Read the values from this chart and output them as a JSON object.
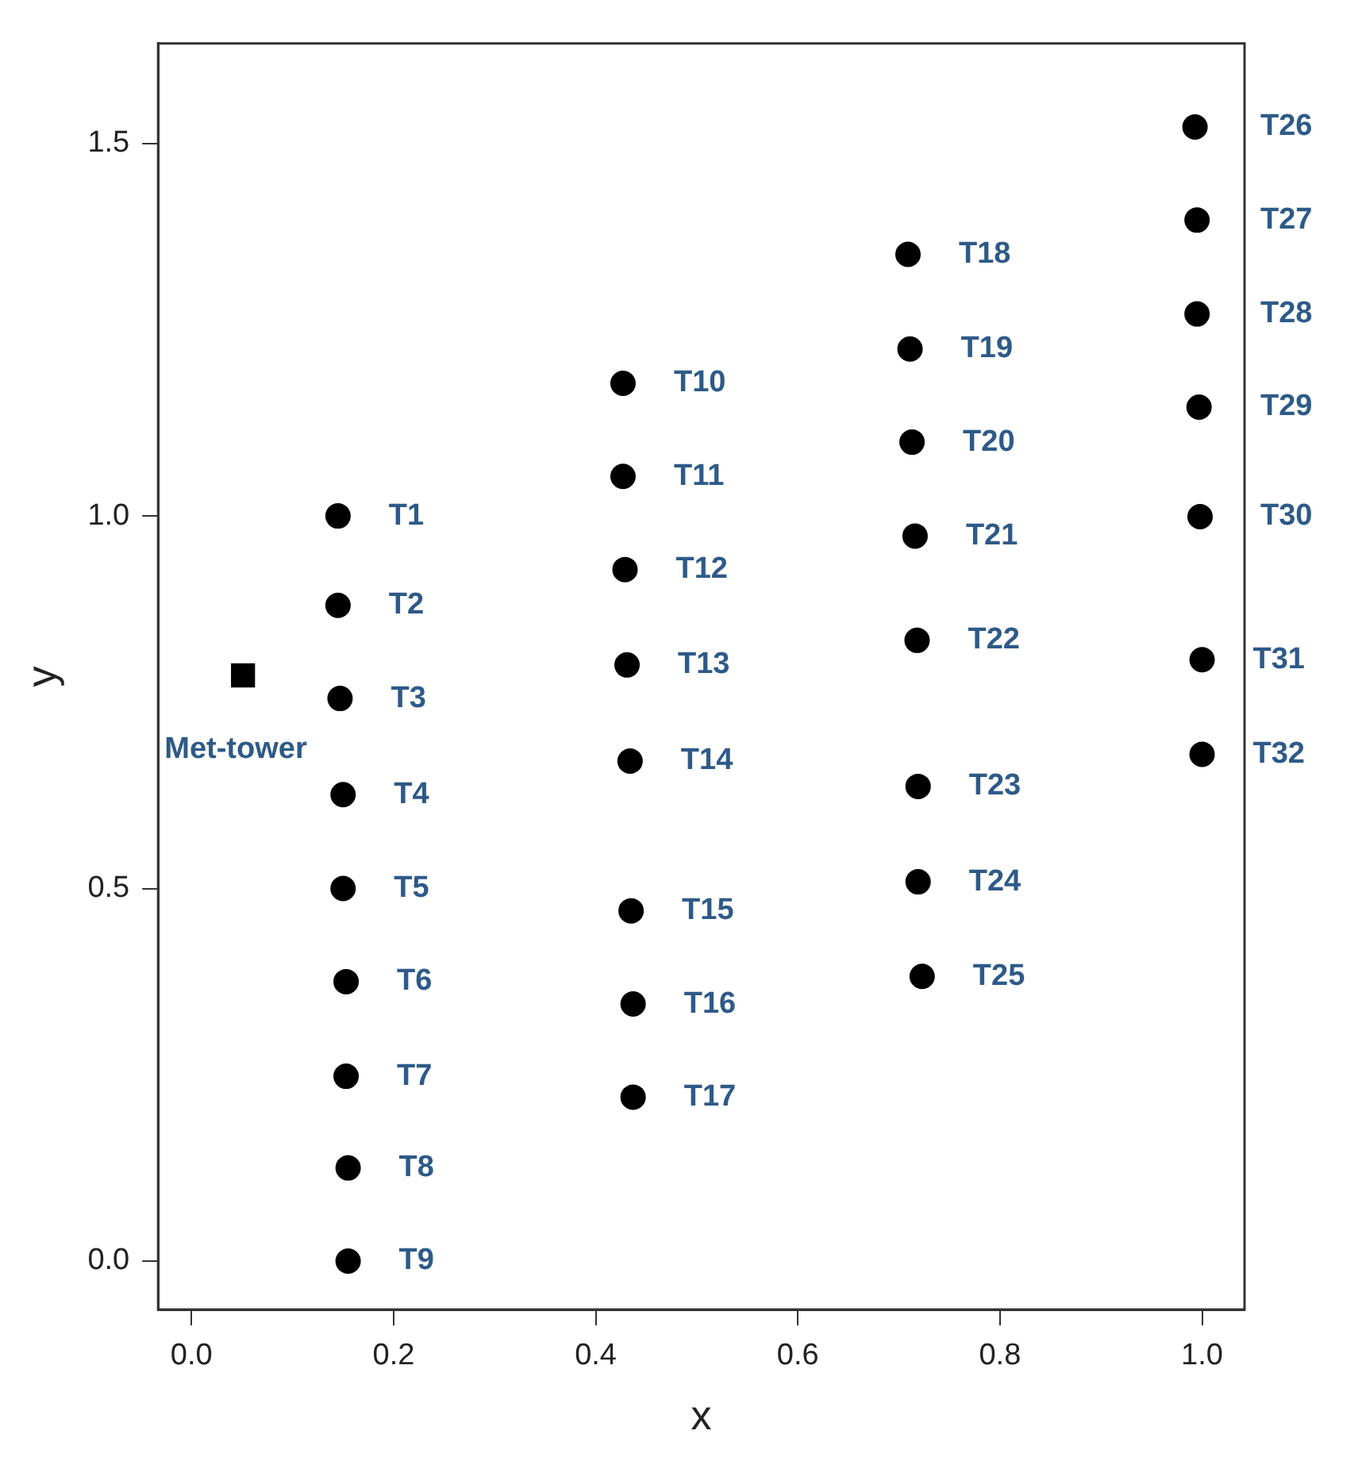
{
  "chart_data": {
    "type": "scatter",
    "xlabel": "x",
    "ylabel": "y",
    "xlim": [
      -0.033,
      1.042
    ],
    "ylim": [
      -0.065,
      1.634
    ],
    "xticks": [
      {
        "value": 0,
        "label": "0.0"
      },
      0.2,
      0.4,
      0.6,
      0.8,
      {
        "value": 1,
        "label": "1.0"
      }
    ],
    "yticks": [
      {
        "value": 0,
        "label": "0.0"
      },
      0.5,
      {
        "value": 1,
        "label": "1.0"
      },
      1.5
    ],
    "grid": false,
    "legend": false,
    "series": [
      {
        "color": "#000000",
        "marker": "circle",
        "x": [
          0.145,
          0.145,
          0.147,
          0.15,
          0.15,
          0.153,
          0.153,
          0.155,
          0.155,
          0.427,
          0.427,
          0.429,
          0.431,
          0.434,
          0.435,
          0.437,
          0.437,
          0.709,
          0.711,
          0.713,
          0.716,
          0.718,
          0.719,
          0.719,
          0.723,
          0.993,
          0.995,
          0.995,
          0.997,
          0.998,
          1.0,
          1.0
        ],
        "values": [
          1.0,
          0.88,
          0.755,
          0.626,
          0.5,
          0.375,
          0.248,
          0.125,
          0.0,
          1.178,
          1.053,
          0.928,
          0.8,
          0.671,
          0.47,
          0.345,
          0.22,
          1.351,
          1.224,
          1.099,
          0.973,
          0.833,
          0.637,
          0.509,
          0.382,
          1.522,
          1.397,
          1.271,
          1.146,
          0.999,
          0.807,
          0.68
        ]
      },
      {
        "color": "#000000",
        "marker": "square",
        "x": [
          0.051
        ],
        "values": [
          0.786
        ]
      }
    ],
    "annotations": [
      {
        "text": "T1",
        "x": 0.145,
        "y": 1.0
      },
      {
        "text": "T2",
        "x": 0.145,
        "y": 0.88
      },
      {
        "text": "T3",
        "x": 0.147,
        "y": 0.755
      },
      {
        "text": "T4",
        "x": 0.15,
        "y": 0.626
      },
      {
        "text": "T5",
        "x": 0.15,
        "y": 0.5
      },
      {
        "text": "T6",
        "x": 0.153,
        "y": 0.375
      },
      {
        "text": "T7",
        "x": 0.153,
        "y": 0.248
      },
      {
        "text": "T8",
        "x": 0.155,
        "y": 0.125
      },
      {
        "text": "T9",
        "x": 0.155,
        "y": 0.0
      },
      {
        "text": "T10",
        "x": 0.427,
        "y": 1.178
      },
      {
        "text": "T11",
        "x": 0.427,
        "y": 1.053
      },
      {
        "text": "T12",
        "x": 0.429,
        "y": 0.928
      },
      {
        "text": "T13",
        "x": 0.431,
        "y": 0.8
      },
      {
        "text": "T14",
        "x": 0.434,
        "y": 0.671
      },
      {
        "text": "T15",
        "x": 0.435,
        "y": 0.47
      },
      {
        "text": "T16",
        "x": 0.437,
        "y": 0.345
      },
      {
        "text": "T17",
        "x": 0.437,
        "y": 0.22
      },
      {
        "text": "T18",
        "x": 0.709,
        "y": 1.351
      },
      {
        "text": "T19",
        "x": 0.711,
        "y": 1.224
      },
      {
        "text": "T20",
        "x": 0.713,
        "y": 1.099
      },
      {
        "text": "T21",
        "x": 0.716,
        "y": 0.973
      },
      {
        "text": "T22",
        "x": 0.718,
        "y": 0.833
      },
      {
        "text": "T23",
        "x": 0.719,
        "y": 0.637
      },
      {
        "text": "T24",
        "x": 0.719,
        "y": 0.509
      },
      {
        "text": "T25",
        "x": 0.723,
        "y": 0.382
      },
      {
        "text": "T26",
        "x": 0.993,
        "y": 1.522
      },
      {
        "text": "T27",
        "x": 0.995,
        "y": 1.397
      },
      {
        "text": "T28",
        "x": 0.995,
        "y": 1.271
      },
      {
        "text": "T29",
        "x": 0.997,
        "y": 1.146
      },
      {
        "text": "T30",
        "x": 0.998,
        "y": 0.999
      },
      {
        "text": "T31",
        "x": 1.0,
        "y": 0.807
      },
      {
        "text": "T32",
        "x": 1.0,
        "y": 0.68
      },
      {
        "text": "Met-tower",
        "x": 0.051,
        "y": 0.786
      }
    ]
  }
}
